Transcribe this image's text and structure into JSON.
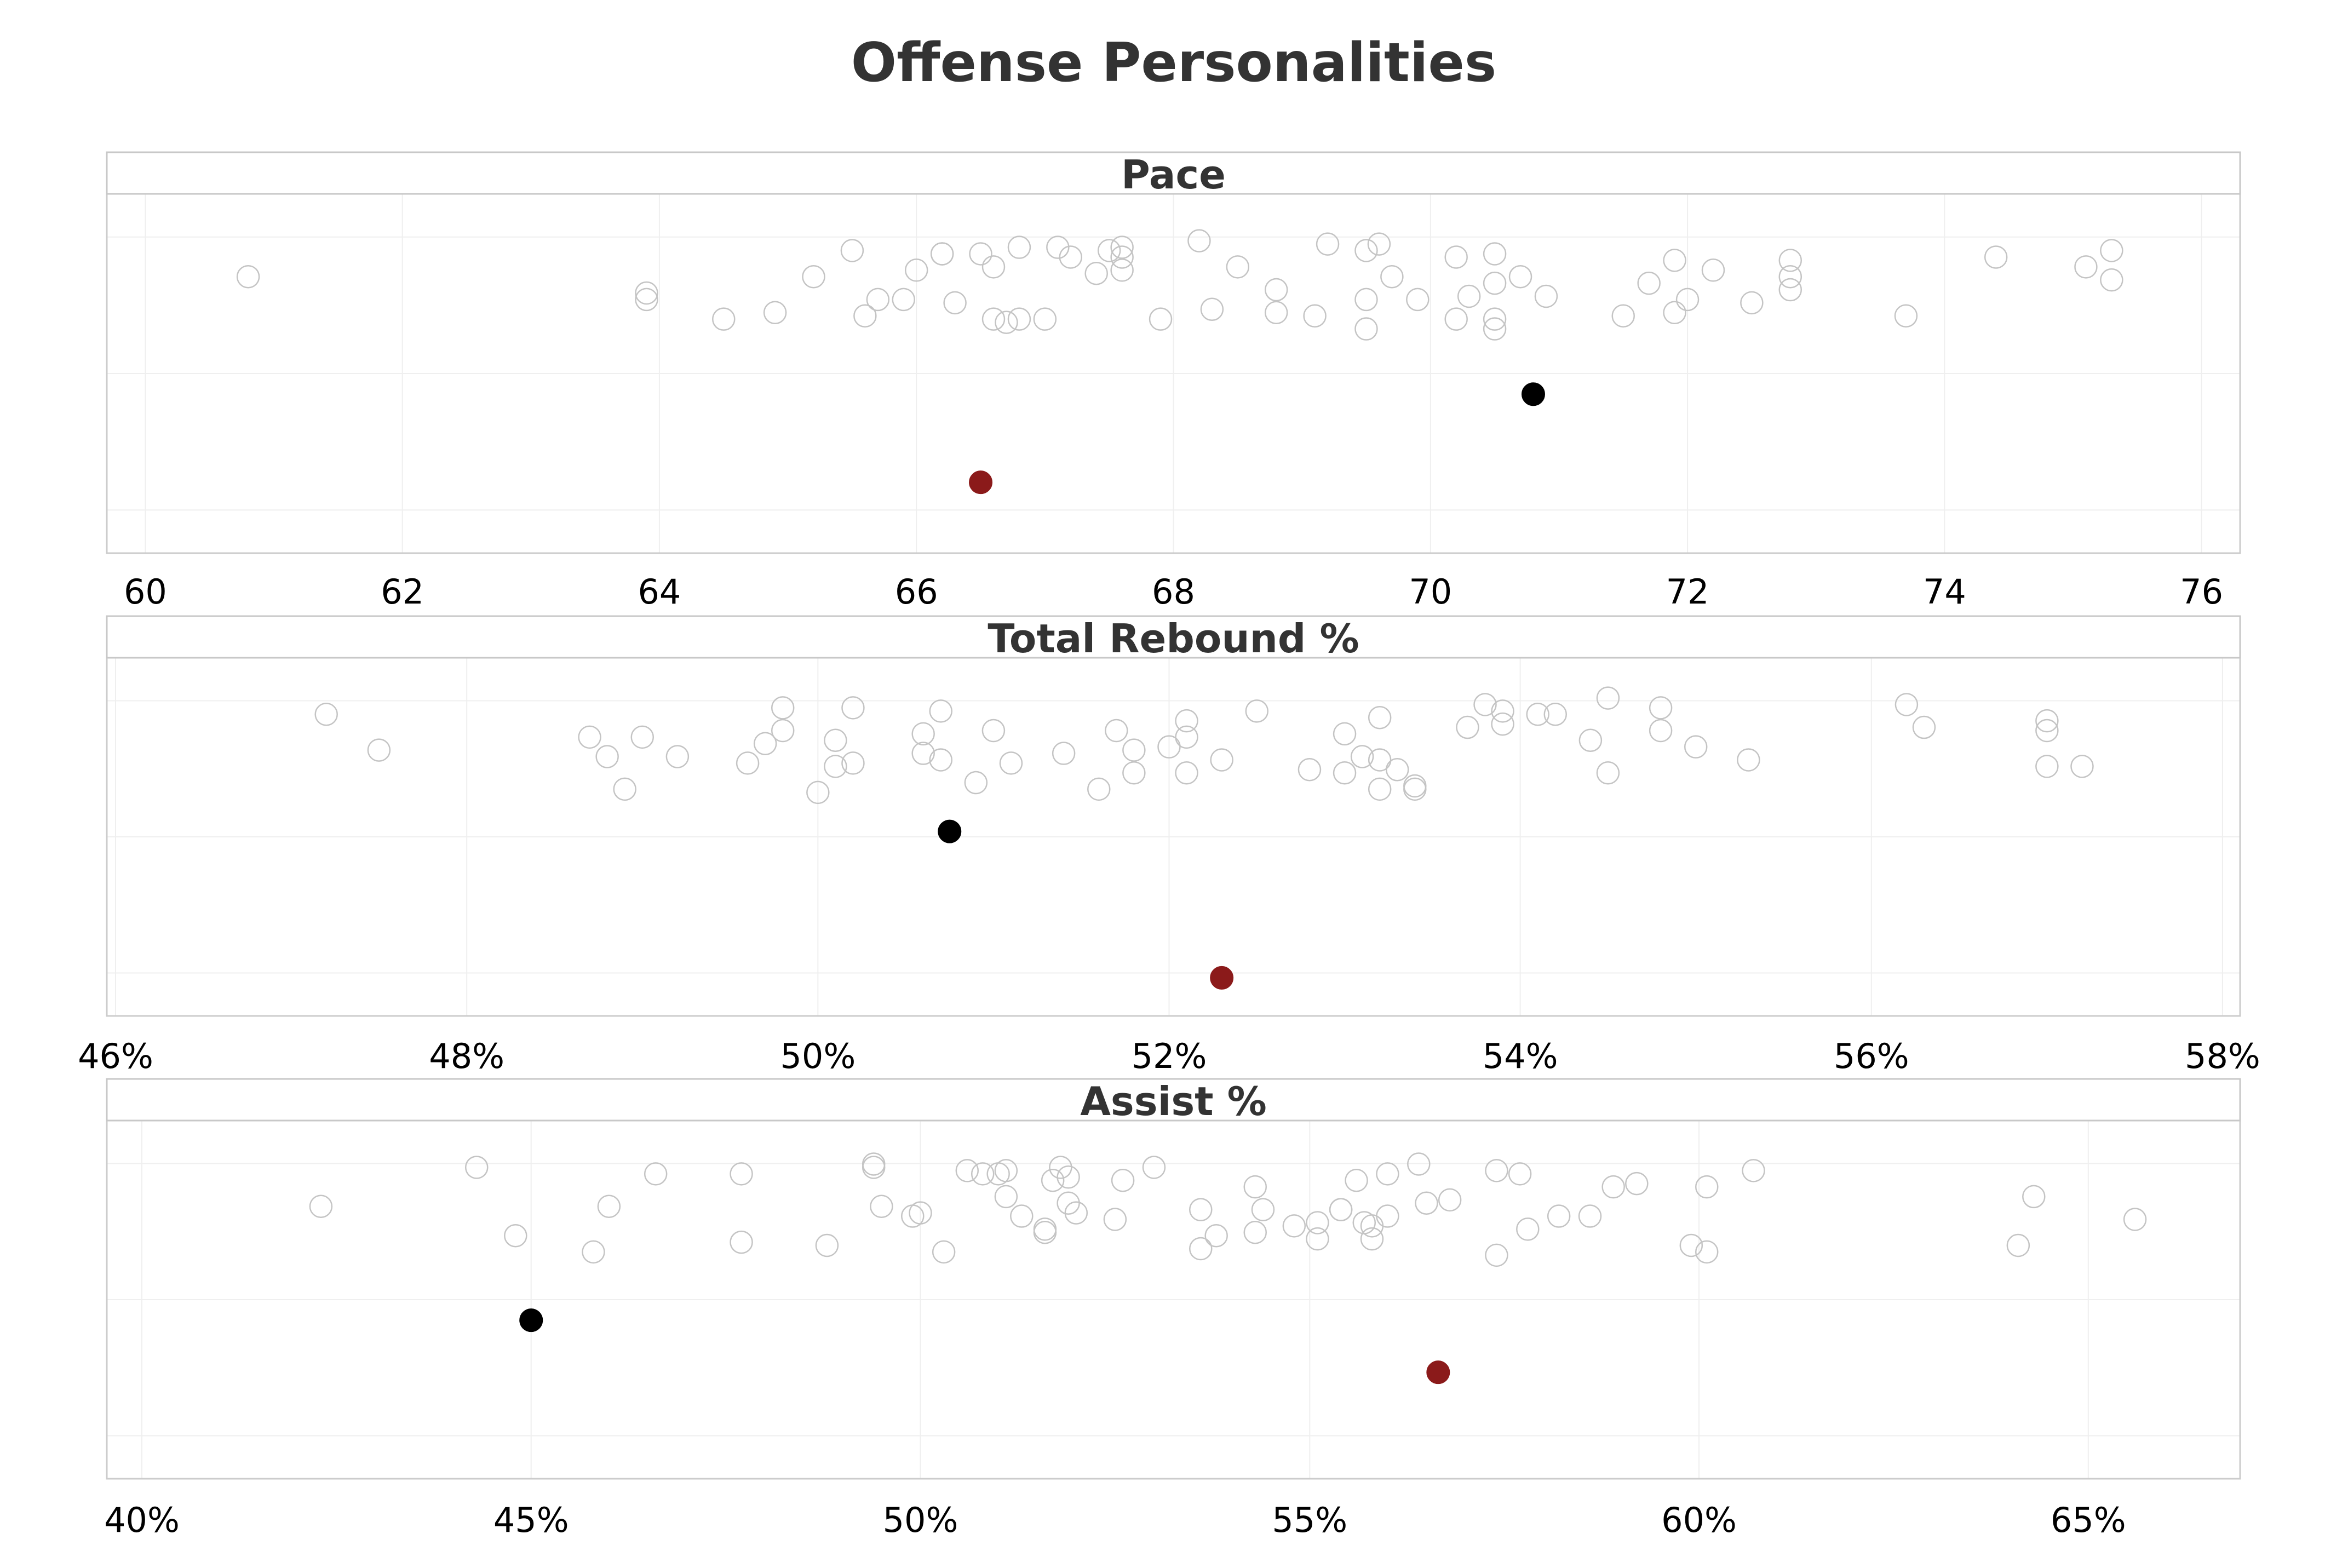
{
  "title": "Offense Personalities",
  "colors": {
    "background": "#ffffff",
    "frame": "#cccccc",
    "strip_border": "#c8c8c8",
    "gridline": "#efefef",
    "other_stroke": "#c4c4c4",
    "highlight_primary": "#000000",
    "highlight_secondary": "#8b1a1a",
    "title_text": "#333333",
    "tick_text": "#000000"
  },
  "chart_data": [
    {
      "type": "scatter",
      "title": "Pace",
      "xlabel": "",
      "ylabel": "",
      "xlim": [
        59.7,
        76.3
      ],
      "ticks": [
        60,
        62,
        64,
        66,
        68,
        70,
        72,
        74,
        76
      ],
      "tick_labels": [
        "60",
        "62",
        "64",
        "66",
        "68",
        "70",
        "72",
        "74",
        "76"
      ],
      "grid": true,
      "legend": "none",
      "jitter_range": [
        0,
        1
      ],
      "series": [
        {
          "role": "other",
          "x": [
            60.8,
            63.9,
            63.9,
            64.5,
            64.9,
            65.2,
            65.5,
            65.6,
            65.7,
            65.9,
            66.0,
            66.2,
            66.2,
            66.3,
            66.5,
            66.6,
            66.6,
            66.7,
            66.8,
            66.8,
            67.0,
            67.1,
            67.2,
            67.4,
            67.5,
            67.6,
            67.6,
            67.6,
            67.9,
            68.2,
            68.3,
            68.5,
            68.8,
            68.8,
            69.1,
            69.2,
            69.5,
            69.5,
            69.5,
            69.6,
            69.7,
            69.9,
            70.2,
            70.2,
            70.3,
            70.5,
            70.5,
            70.5,
            70.5,
            70.7,
            70.9,
            71.5,
            71.7,
            71.9,
            71.9,
            72.0,
            72.2,
            72.5,
            72.8,
            72.8,
            72.8,
            73.7,
            74.4,
            75.1,
            75.3,
            75.3
          ],
          "y": [
            0.8,
            0.75,
            0.73,
            0.67,
            0.69,
            0.8,
            0.88,
            0.68,
            0.73,
            0.73,
            0.82,
            0.87,
            0.87,
            0.72,
            0.87,
            0.83,
            0.67,
            0.66,
            0.89,
            0.67,
            0.67,
            0.89,
            0.86,
            0.81,
            0.88,
            0.89,
            0.86,
            0.82,
            0.67,
            0.91,
            0.7,
            0.83,
            0.76,
            0.69,
            0.68,
            0.9,
            0.88,
            0.73,
            0.64,
            0.9,
            0.8,
            0.73,
            0.86,
            0.67,
            0.74,
            0.87,
            0.78,
            0.67,
            0.64,
            0.8,
            0.74,
            0.68,
            0.78,
            0.85,
            0.69,
            0.73,
            0.82,
            0.72,
            0.85,
            0.8,
            0.76,
            0.68,
            0.86,
            0.83,
            0.88,
            0.79
          ]
        },
        {
          "role": "highlight-primary",
          "x": [
            70.8
          ],
          "y": [
            0.44
          ]
        },
        {
          "role": "highlight-secondary",
          "x": [
            66.5
          ],
          "y": [
            0.17
          ]
        }
      ]
    },
    {
      "type": "scatter",
      "title": "Total Rebound %",
      "xlabel": "",
      "ylabel": "",
      "xlim": [
        45.95,
        58.1
      ],
      "ticks": [
        46,
        48,
        50,
        52,
        54,
        56,
        58
      ],
      "tick_labels": [
        "46%",
        "48%",
        "50%",
        "52%",
        "54%",
        "56%",
        "58%"
      ],
      "grid": true,
      "legend": "none",
      "jitter_range": [
        0,
        1
      ],
      "series": [
        {
          "role": "other",
          "x": [
            47.2,
            47.5,
            48.7,
            48.8,
            48.9,
            49.0,
            49.2,
            49.6,
            49.7,
            49.8,
            49.8,
            50.0,
            50.1,
            50.1,
            50.2,
            50.2,
            50.6,
            50.6,
            50.7,
            50.7,
            50.9,
            51.0,
            51.1,
            51.4,
            51.6,
            51.7,
            51.8,
            51.8,
            52.0,
            52.1,
            52.1,
            52.1,
            52.3,
            52.5,
            52.8,
            53.0,
            53.0,
            53.1,
            53.2,
            53.2,
            53.2,
            53.3,
            53.4,
            53.4,
            53.7,
            53.8,
            53.9,
            53.9,
            54.1,
            54.2,
            54.4,
            54.5,
            54.5,
            54.8,
            54.8,
            55.0,
            55.3,
            56.2,
            56.3,
            57.0,
            57.0,
            57.0,
            57.2
          ],
          "y": [
            0.88,
            0.77,
            0.81,
            0.75,
            0.65,
            0.81,
            0.75,
            0.73,
            0.79,
            0.83,
            0.9,
            0.64,
            0.8,
            0.72,
            0.73,
            0.9,
            0.82,
            0.76,
            0.74,
            0.89,
            0.67,
            0.83,
            0.73,
            0.76,
            0.65,
            0.83,
            0.77,
            0.7,
            0.78,
            0.86,
            0.81,
            0.7,
            0.74,
            0.89,
            0.71,
            0.82,
            0.7,
            0.75,
            0.87,
            0.74,
            0.65,
            0.71,
            0.66,
            0.65,
            0.84,
            0.91,
            0.89,
            0.85,
            0.88,
            0.88,
            0.8,
            0.93,
            0.7,
            0.9,
            0.83,
            0.78,
            0.74,
            0.91,
            0.84,
            0.86,
            0.83,
            0.72,
            0.72
          ],
          "x_note_removed": true
        },
        {
          "role": "highlight-primary",
          "x": [
            50.75
          ],
          "y": [
            0.52
          ]
        },
        {
          "role": "highlight-secondary",
          "x": [
            52.3
          ],
          "y": [
            0.07
          ]
        }
      ]
    },
    {
      "type": "scatter",
      "title": "Assist %",
      "xlabel": "",
      "ylabel": "",
      "xlim": [
        39.55,
        66.95
      ],
      "ticks": [
        40,
        45,
        50,
        55,
        60,
        65
      ],
      "tick_labels": [
        "40%",
        "45%",
        "50%",
        "55%",
        "60%",
        "65%"
      ],
      "grid": true,
      "legend": "none",
      "jitter_range": [
        0,
        1
      ],
      "series": [
        {
          "role": "other",
          "x": [
            42.3,
            44.3,
            44.8,
            45.8,
            46.0,
            46.6,
            47.7,
            47.7,
            48.8,
            49.4,
            49.4,
            49.5,
            49.9,
            50.0,
            50.3,
            50.6,
            50.8,
            51.0,
            51.1,
            51.1,
            51.3,
            51.6,
            51.6,
            51.7,
            51.8,
            51.9,
            51.9,
            52.0,
            52.5,
            52.6,
            53.0,
            53.6,
            53.6,
            53.8,
            54.3,
            54.3,
            54.4,
            54.8,
            55.1,
            55.1,
            55.4,
            55.4,
            55.6,
            55.7,
            55.8,
            55.8,
            56.0,
            56.0,
            56.4,
            56.5,
            56.8,
            57.4,
            57.4,
            57.7,
            57.8,
            58.2,
            58.6,
            58.9,
            59.2,
            59.9,
            60.1,
            60.1,
            60.7,
            64.1,
            64.3,
            65.6
          ],
          "y": [
            0.79,
            0.91,
            0.7,
            0.65,
            0.79,
            0.89,
            0.89,
            0.68,
            0.67,
            0.91,
            0.92,
            0.79,
            0.76,
            0.77,
            0.65,
            0.9,
            0.89,
            0.89,
            0.9,
            0.82,
            0.76,
            0.72,
            0.71,
            0.87,
            0.91,
            0.88,
            0.8,
            0.77,
            0.75,
            0.87,
            0.91,
            0.78,
            0.66,
            0.7,
            0.71,
            0.85,
            0.78,
            0.73,
            0.74,
            0.69,
            0.78,
            0.78,
            0.87,
            0.74,
            0.73,
            0.69,
            0.76,
            0.89,
            0.92,
            0.8,
            0.81,
            0.9,
            0.64,
            0.89,
            0.72,
            0.76,
            0.76,
            0.85,
            0.86,
            0.67,
            0.65,
            0.85,
            0.9,
            0.67,
            0.82,
            0.75
          ]
        },
        {
          "role": "highlight-primary",
          "x": [
            45.0
          ],
          "y": [
            0.44
          ]
        },
        {
          "role": "highlight-secondary",
          "x": [
            56.65
          ],
          "y": [
            0.28
          ]
        }
      ]
    }
  ]
}
